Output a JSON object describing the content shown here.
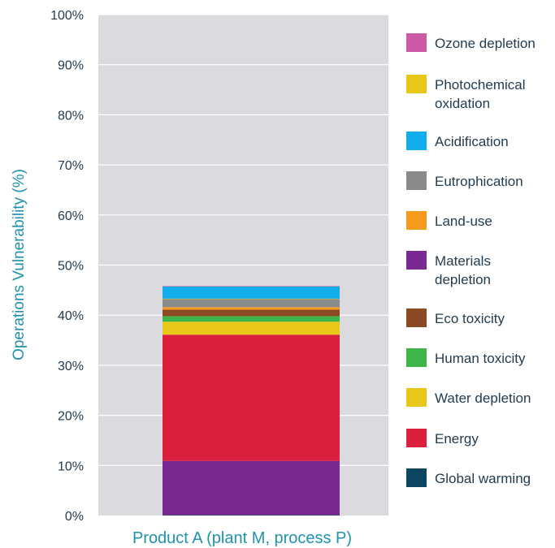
{
  "chart_data": {
    "type": "bar",
    "stacked": true,
    "categories": [
      "Product A (plant M, process P)"
    ],
    "ylabel": "Operations Vulnerability (%)",
    "xlabel": "",
    "ylim": [
      0,
      100
    ],
    "y_ticks": [
      "0%",
      "10%",
      "20%",
      "30%",
      "40%",
      "50%",
      "60%",
      "70%",
      "80%",
      "90%",
      "100%"
    ],
    "grid": true,
    "legend_position": "right",
    "series": [
      {
        "name": "Global warming",
        "values": [
          0.1
        ],
        "color": "#0c4660"
      },
      {
        "name": "Materials depletion",
        "values": [
          10.8
        ],
        "color": "#7b2992"
      },
      {
        "name": "Energy",
        "values": [
          25.2
        ],
        "color": "#dc1f3c"
      },
      {
        "name": "Water depletion",
        "values": [
          2.6
        ],
        "color": "#e8c718"
      },
      {
        "name": "Human toxicity",
        "values": [
          1.1
        ],
        "color": "#3eb549"
      },
      {
        "name": "Eco toxicity",
        "values": [
          1.3
        ],
        "color": "#8b4a23"
      },
      {
        "name": "Land-use",
        "values": [
          0.5
        ],
        "color": "#f59a1c"
      },
      {
        "name": "Eutrophication",
        "values": [
          1.6
        ],
        "color": "#898a8c"
      },
      {
        "name": "Photochemical oxidation",
        "values": [
          0.1
        ],
        "color": "#e8c718"
      },
      {
        "name": "Acidification",
        "values": [
          2.4
        ],
        "color": "#12adec"
      },
      {
        "name": "Ozone depletion",
        "values": [
          0.1
        ],
        "color": "#cc58a6"
      }
    ],
    "legend": [
      {
        "label_lines": [
          "Ozone depletion"
        ],
        "color": "#cc58a6"
      },
      {
        "label_lines": [
          "Photochemical",
          "oxidation"
        ],
        "color": "#e8c718"
      },
      {
        "label_lines": [
          "Acidification"
        ],
        "color": "#12adec"
      },
      {
        "label_lines": [
          "Eutrophication"
        ],
        "color": "#898a8c"
      },
      {
        "label_lines": [
          "Land-use"
        ],
        "color": "#f59a1c"
      },
      {
        "label_lines": [
          "Materials",
          "depletion"
        ],
        "color": "#7b2992"
      },
      {
        "label_lines": [
          "Eco toxicity"
        ],
        "color": "#8b4a23"
      },
      {
        "label_lines": [
          "Human toxicity"
        ],
        "color": "#3eb549"
      },
      {
        "label_lines": [
          "Water depletion"
        ],
        "color": "#e8c718"
      },
      {
        "label_lines": [
          "Energy"
        ],
        "color": "#dc1f3c"
      },
      {
        "label_lines": [
          "Global warming"
        ],
        "color": "#0c4660"
      }
    ]
  },
  "colors": {
    "plot_background": "#dadadf",
    "gridline": "#ffffff",
    "axis_label": "#1f93ab",
    "tick_text": "#233c4f"
  }
}
